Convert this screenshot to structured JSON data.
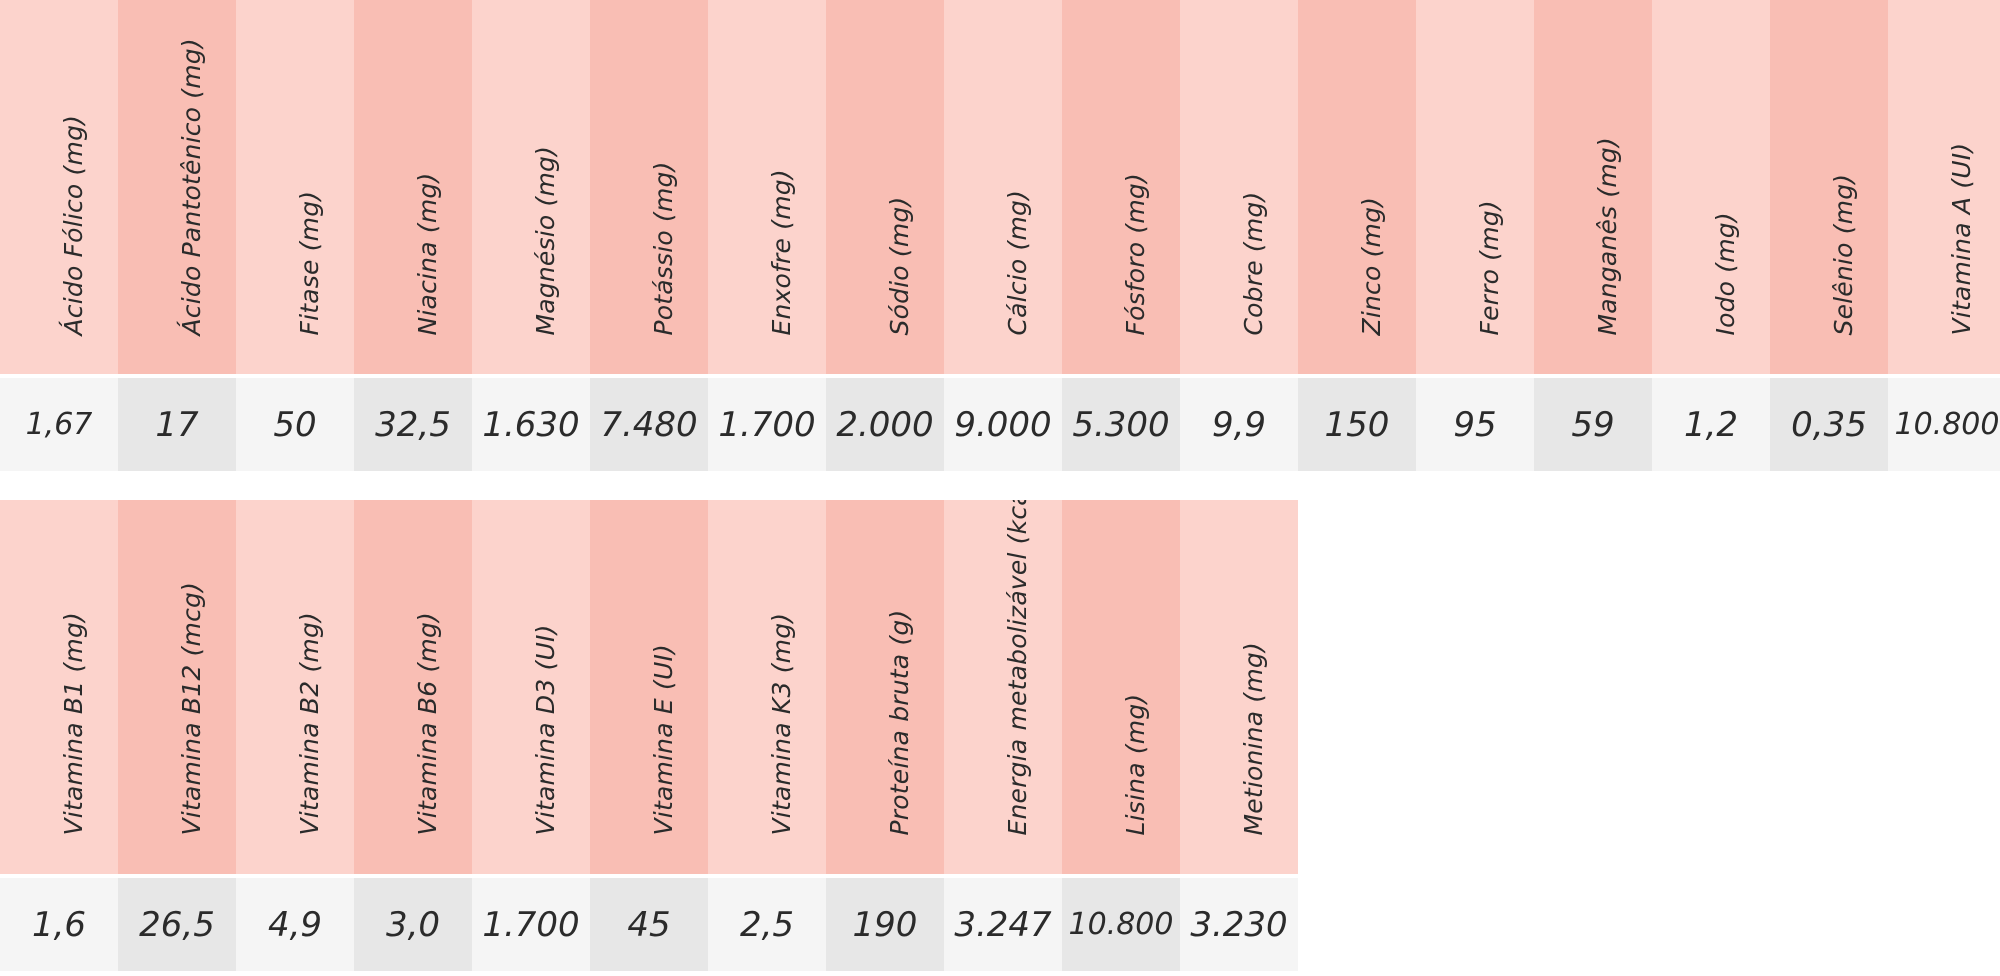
{
  "table_top": {
    "columns": [
      {
        "header": "Ácido Fólico (mg)",
        "value": "1,67"
      },
      {
        "header": "Ácido Pantotênico  (mg)",
        "value": "17"
      },
      {
        "header": "Fitase  (mg)",
        "value": "50"
      },
      {
        "header": "Niacina  (mg)",
        "value": "32,5"
      },
      {
        "header": "Magnésio  (mg)",
        "value": "1.630"
      },
      {
        "header": "Potássio  (mg)",
        "value": "7.480"
      },
      {
        "header": "Enxofre  (mg)",
        "value": "1.700"
      },
      {
        "header": "Sódio  (mg)",
        "value": "2.000"
      },
      {
        "header": "Cálcio  (mg)",
        "value": "9.000"
      },
      {
        "header": "Fósforo (mg)",
        "value": "5.300"
      },
      {
        "header": "Cobre (mg)",
        "value": "9,9"
      },
      {
        "header": "Zinco (mg)",
        "value": "150"
      },
      {
        "header": "Ferro (mg)",
        "value": "95"
      },
      {
        "header": "Manganês (mg)",
        "value": "59"
      },
      {
        "header": "Iodo (mg)",
        "value": "1,2"
      },
      {
        "header": "Selênio (mg)",
        "value": "0,35"
      },
      {
        "header": "Vitamina A (UI)",
        "value": "10.800"
      }
    ]
  },
  "table_bottom": {
    "columns": [
      {
        "header": "Vitamina B1 (mg)",
        "value": "1,6"
      },
      {
        "header": "Vitamina B12 (mcg)",
        "value": "26,5"
      },
      {
        "header": "Vitamina B2 (mg)",
        "value": "4,9"
      },
      {
        "header": "Vitamina B6 (mg)",
        "value": "3,0"
      },
      {
        "header": "Vitamina D3 (UI)",
        "value": "1.700"
      },
      {
        "header": "Vitamina E (UI)",
        "value": "45"
      },
      {
        "header": "Vitamina K3 (mg)",
        "value": "2,5"
      },
      {
        "header": "Proteína bruta (g)",
        "value": "190"
      },
      {
        "header": "Energia metabolizável (kcal)",
        "value": "3.247"
      },
      {
        "header": "Lisina (mg)",
        "value": "10.800"
      },
      {
        "header": "Metionina (mg)",
        "value": "3.230"
      }
    ]
  }
}
